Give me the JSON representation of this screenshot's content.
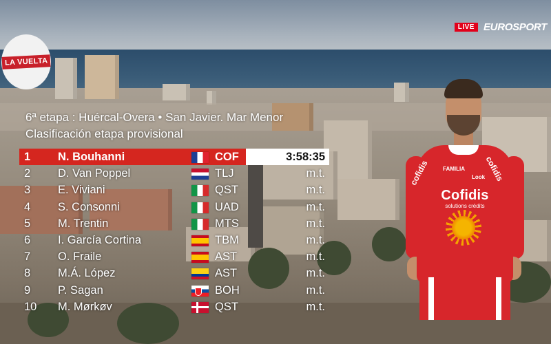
{
  "broadcast": {
    "race_logo_text": "LA VUELTA",
    "live_label": "LIVE",
    "broadcaster_name": "EUROSPORT"
  },
  "header": {
    "stage": "6ª etapa : Huércal-Overa • San Javier. Mar Menor",
    "classification": "Clasificación etapa provisional"
  },
  "results": [
    {
      "pos": "1",
      "name": "N. Bouhanni",
      "flag": "fr",
      "team": "COF",
      "time": "3:58:35"
    },
    {
      "pos": "2",
      "name": "D. Van Poppel",
      "flag": "nl",
      "team": "TLJ",
      "time": "m.t."
    },
    {
      "pos": "3",
      "name": "E. Viviani",
      "flag": "it",
      "team": "QST",
      "time": "m.t."
    },
    {
      "pos": "4",
      "name": "S. Consonni",
      "flag": "it",
      "team": "UAD",
      "time": "m.t."
    },
    {
      "pos": "5",
      "name": "M. Trentin",
      "flag": "it",
      "team": "MTS",
      "time": "m.t."
    },
    {
      "pos": "6",
      "name": "I. García Cortina",
      "flag": "es",
      "team": "TBM",
      "time": "m.t."
    },
    {
      "pos": "7",
      "name": "O. Fraile",
      "flag": "es",
      "team": "AST",
      "time": "m.t."
    },
    {
      "pos": "8",
      "name": "M.Á. López",
      "flag": "co",
      "team": "AST",
      "time": "m.t."
    },
    {
      "pos": "9",
      "name": "P. Sagan",
      "flag": "sk",
      "team": "BOH",
      "time": "m.t."
    },
    {
      "pos": "10",
      "name": "M. Mørkøv",
      "flag": "dk",
      "team": "QST",
      "time": "m.t."
    }
  ],
  "rider_jersey": {
    "sponsor": "Cofidis",
    "sponsor_sub": "solutions crédits",
    "side_left": "cofidis",
    "side_right": "cofidis",
    "chest_left": "FAMILIA",
    "chest_right": "Look"
  },
  "colors": {
    "leader_row": "#d5261f",
    "live_badge": "#e2001a",
    "jersey": "#d7262b"
  }
}
